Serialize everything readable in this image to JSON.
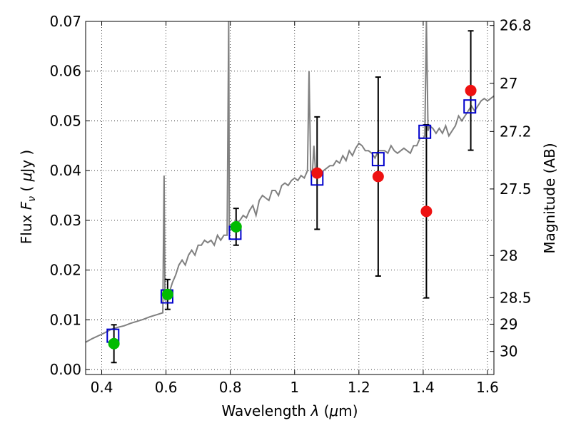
{
  "chart_data": {
    "type": "scatter",
    "xlabel_parts": [
      "Wavelength  ",
      "λ",
      " (",
      "μ",
      "m)"
    ],
    "ylabel_parts": [
      "Flux  ",
      "F",
      "ν",
      "  ( ",
      "μ",
      "Jy )"
    ],
    "y2label": "Magnitude (AB)",
    "xlim": [
      0.35,
      1.62
    ],
    "ylim": [
      -0.001,
      0.07
    ],
    "grid": true,
    "x_ticks": [
      0.4,
      0.6,
      0.8,
      1.0,
      1.2,
      1.4,
      1.6
    ],
    "x_tick_labels": [
      "0.4",
      "0.6",
      "0.8",
      "1",
      "1.2",
      "1.4",
      "1.6"
    ],
    "y_ticks": [
      0.0,
      0.01,
      0.02,
      0.03,
      0.04,
      0.05,
      0.06,
      0.07
    ],
    "y_tick_labels": [
      "0.00",
      "0.01",
      "0.02",
      "0.03",
      "0.04",
      "0.05",
      "0.06",
      "0.07"
    ],
    "mag_ticks": [
      26.8,
      27.0,
      27.2,
      27.5,
      28.0,
      28.5,
      29.0,
      30.0
    ],
    "mag_tick_labels": [
      "26.8",
      "27",
      "27.2",
      "27.5",
      "28",
      "28.5",
      "29",
      "30"
    ],
    "colors": {
      "spectrum": "#808080",
      "model": "#0000cc",
      "green": "#00bb00",
      "red": "#ee1111",
      "errorbar": "#000000"
    },
    "spectrum": {
      "x": [
        0.35,
        0.37,
        0.39,
        0.41,
        0.43,
        0.45,
        0.47,
        0.49,
        0.51,
        0.53,
        0.55,
        0.57,
        0.59,
        0.594,
        0.597,
        0.6,
        0.605,
        0.61,
        0.615,
        0.62,
        0.63,
        0.64,
        0.65,
        0.66,
        0.67,
        0.68,
        0.69,
        0.7,
        0.71,
        0.72,
        0.73,
        0.74,
        0.75,
        0.76,
        0.77,
        0.78,
        0.79,
        0.795,
        0.797,
        0.8,
        0.805,
        0.81,
        0.82,
        0.83,
        0.84,
        0.85,
        0.86,
        0.87,
        0.88,
        0.89,
        0.9,
        0.91,
        0.92,
        0.93,
        0.94,
        0.95,
        0.96,
        0.97,
        0.98,
        0.99,
        1.0,
        1.01,
        1.02,
        1.03,
        1.04,
        1.045,
        1.05,
        1.055,
        1.06,
        1.065,
        1.07,
        1.08,
        1.09,
        1.1,
        1.11,
        1.12,
        1.13,
        1.14,
        1.15,
        1.16,
        1.17,
        1.18,
        1.19,
        1.2,
        1.21,
        1.22,
        1.23,
        1.24,
        1.25,
        1.26,
        1.27,
        1.28,
        1.29,
        1.3,
        1.31,
        1.32,
        1.33,
        1.34,
        1.35,
        1.36,
        1.37,
        1.38,
        1.39,
        1.4,
        1.405,
        1.41,
        1.415,
        1.42,
        1.43,
        1.44,
        1.45,
        1.46,
        1.47,
        1.48,
        1.49,
        1.5,
        1.51,
        1.52,
        1.53,
        1.54,
        1.55,
        1.56,
        1.57,
        1.58,
        1.59,
        1.6,
        1.61,
        1.62
      ],
      "y": [
        0.0055,
        0.0062,
        0.0068,
        0.0074,
        0.0081,
        0.0085,
        0.0088,
        0.0093,
        0.0097,
        0.0101,
        0.0106,
        0.011,
        0.0114,
        0.039,
        0.014,
        0.014,
        0.0145,
        0.0155,
        0.0165,
        0.0175,
        0.019,
        0.021,
        0.022,
        0.021,
        0.023,
        0.024,
        0.023,
        0.025,
        0.025,
        0.026,
        0.0255,
        0.026,
        0.025,
        0.027,
        0.026,
        0.027,
        0.027,
        0.07,
        0.028,
        0.028,
        0.0285,
        0.029,
        0.0295,
        0.03,
        0.031,
        0.0305,
        0.032,
        0.033,
        0.031,
        0.034,
        0.035,
        0.0345,
        0.034,
        0.036,
        0.036,
        0.035,
        0.037,
        0.0375,
        0.037,
        0.038,
        0.0385,
        0.038,
        0.039,
        0.0385,
        0.04,
        0.06,
        0.04,
        0.039,
        0.045,
        0.04,
        0.0395,
        0.0395,
        0.04,
        0.0405,
        0.041,
        0.041,
        0.042,
        0.0415,
        0.043,
        0.042,
        0.044,
        0.043,
        0.0445,
        0.0455,
        0.045,
        0.044,
        0.044,
        0.0435,
        0.0425,
        0.044,
        0.044,
        0.044,
        0.0435,
        0.045,
        0.044,
        0.0435,
        0.044,
        0.0445,
        0.044,
        0.0435,
        0.045,
        0.045,
        0.0465,
        0.0465,
        0.047,
        0.07,
        0.048,
        0.049,
        0.0485,
        0.0475,
        0.0485,
        0.0475,
        0.049,
        0.047,
        0.048,
        0.049,
        0.051,
        0.05,
        0.051,
        0.052,
        0.053,
        0.052,
        0.053,
        0.054,
        0.0545,
        0.054,
        0.0545,
        0.055
      ]
    },
    "model_points": {
      "x": [
        0.435,
        0.603,
        0.815,
        1.07,
        1.26,
        1.405,
        1.545
      ],
      "y": [
        0.0068,
        0.0147,
        0.0275,
        0.0384,
        0.0423,
        0.0478,
        0.0529
      ]
    },
    "green_points": {
      "x": [
        0.438,
        0.605,
        0.818
      ],
      "y": [
        0.0052,
        0.0151,
        0.0287
      ],
      "yerr": [
        0.0038,
        0.003,
        0.0037
      ]
    },
    "red_points": {
      "x": [
        1.07,
        1.26,
        1.41,
        1.548
      ],
      "y": [
        0.0395,
        0.0388,
        0.0318,
        0.0561
      ],
      "yerr": [
        0.0113,
        0.02,
        0.0174,
        0.012
      ]
    }
  }
}
